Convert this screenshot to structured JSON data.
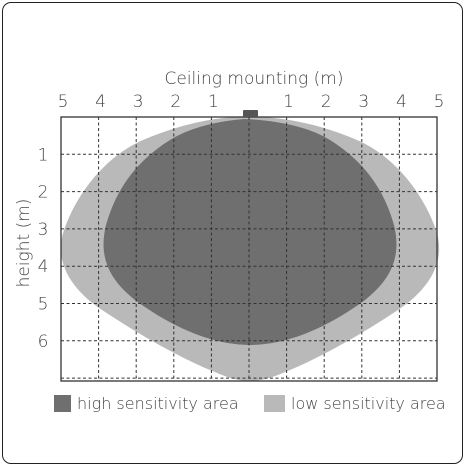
{
  "diagram": {
    "title": "Ceiling mounting (m)",
    "y_axis_label": "height (m)",
    "x_tick_labels": [
      "5",
      "4",
      "3",
      "2",
      "1",
      "",
      "1",
      "2",
      "3",
      "4",
      "5"
    ],
    "y_tick_labels": [
      "1",
      "2",
      "3",
      "4",
      "5",
      "6"
    ],
    "legend": {
      "high_label": "high sensitivity area",
      "low_label": "low sensitivity area"
    },
    "colors": {
      "high": "#6f6f6f",
      "low": "#b9b9b9",
      "sensor": "#555555",
      "grid": "#333333"
    }
  }
}
